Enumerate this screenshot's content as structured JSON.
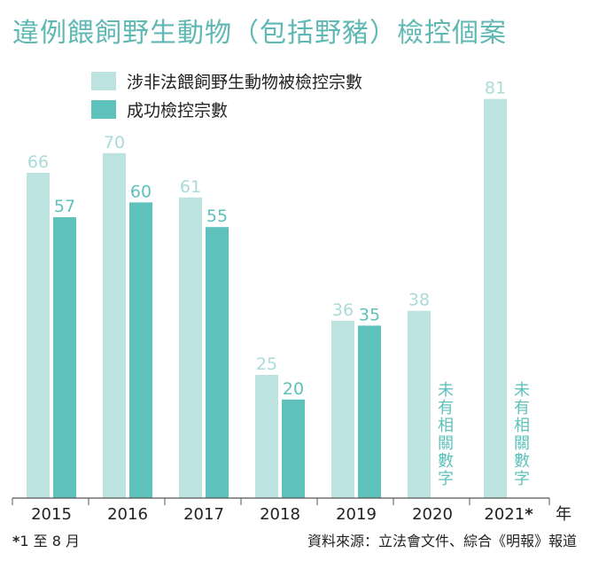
{
  "title": "違例餵飼野生動物（包括野豬）檢控個案",
  "legend": [
    {
      "label": "涉非法餵飼野生動物被檢控宗數",
      "color": "#bde3e0"
    },
    {
      "label": "成功檢控宗數",
      "color": "#5fc1bb"
    }
  ],
  "chart_data": {
    "type": "bar",
    "categories": [
      "2015",
      "2016",
      "2017",
      "2018",
      "2019",
      "2020",
      "2021*"
    ],
    "x_unit": "年",
    "series": [
      {
        "name": "涉非法餵飼野生動物被檢控宗數",
        "values": [
          66,
          70,
          61,
          25,
          36,
          38,
          81
        ]
      },
      {
        "name": "成功檢控宗數",
        "values": [
          57,
          60,
          55,
          20,
          35,
          null,
          null
        ]
      }
    ],
    "missing_note": "未有相關數字",
    "ylim": [
      0,
      90
    ]
  },
  "footnote_mark": "*",
  "footnote": "1 至 8 月",
  "source": "資料來源：立法會文件、綜合《明報》報道",
  "colors": {
    "light": "#bde3e0",
    "dark": "#5fc1bb",
    "light_label": "#a9dcd8",
    "dark_label": "#5fc1bb"
  }
}
